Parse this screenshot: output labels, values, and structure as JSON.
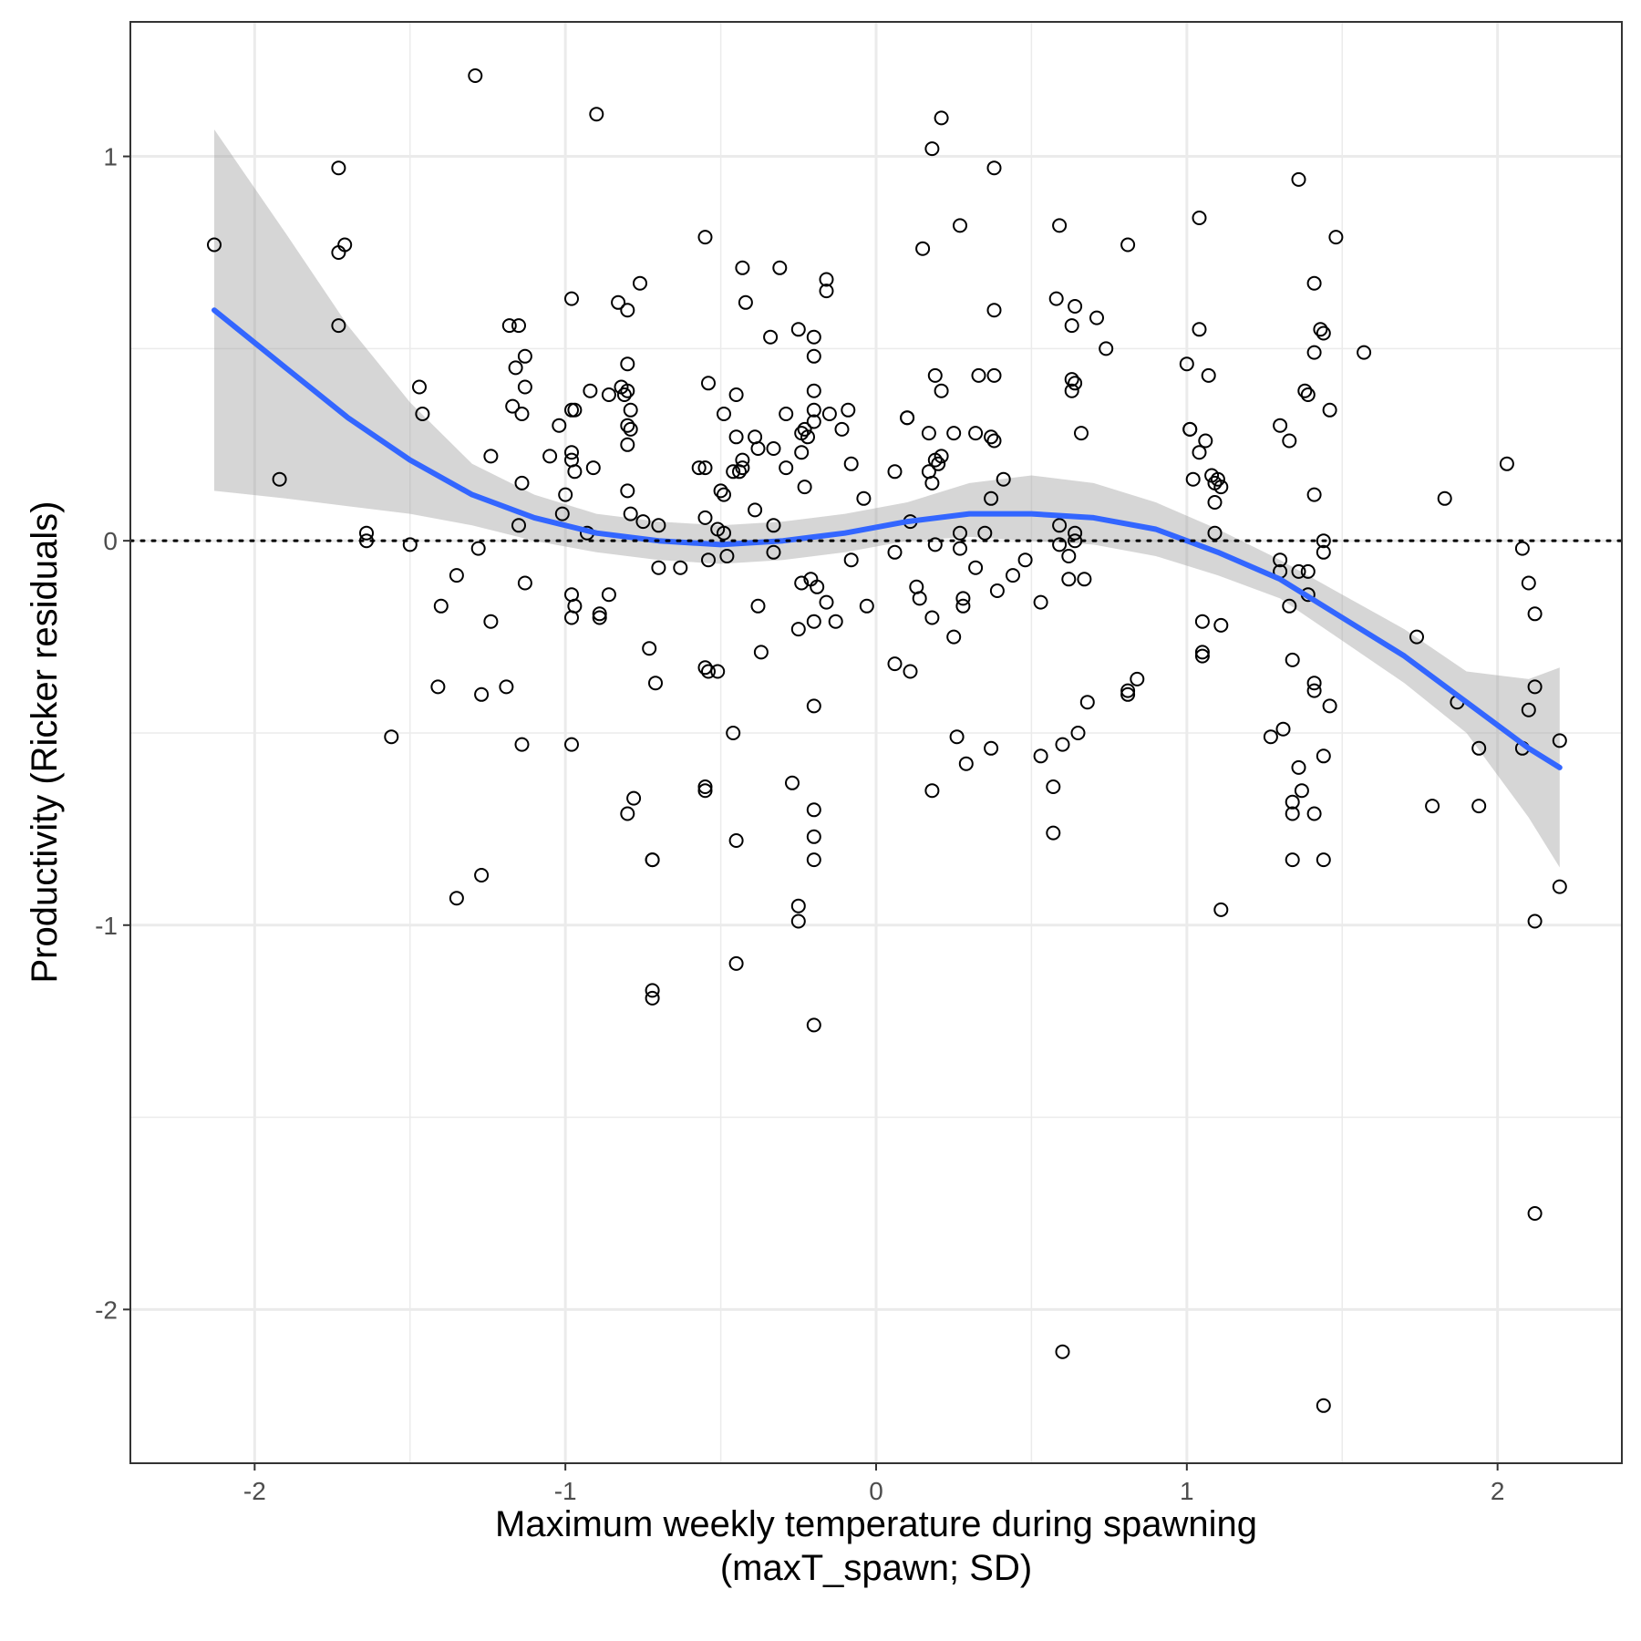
{
  "chart_data": {
    "type": "scatter",
    "title": "",
    "xlabel_lines": [
      "Maximum weekly temperature during spawning",
      "(maxT_spawn; SD)"
    ],
    "ylabel": "Productivity (Ricker residuals)",
    "xlim": [
      -2.4,
      2.4
    ],
    "ylim": [
      -2.4,
      1.35
    ],
    "x_ticks": [
      -2,
      -1,
      0,
      1,
      2
    ],
    "x_tick_labels": [
      "-2",
      "-1",
      "0",
      "1",
      "2"
    ],
    "y_ticks": [
      -2,
      -1,
      0,
      1
    ],
    "y_tick_labels": [
      "-2",
      "-1",
      "0",
      "1"
    ],
    "grid": true,
    "reference_line": {
      "y": 0,
      "style": "dotted"
    },
    "colors": {
      "points": "#000000",
      "smooth": "#3366FF",
      "ribbon": "#999999",
      "grid": "#ebebeb"
    },
    "smooth": {
      "method": "loess",
      "x": [
        -2.13,
        -1.9,
        -1.7,
        -1.5,
        -1.3,
        -1.1,
        -0.9,
        -0.7,
        -0.5,
        -0.3,
        -0.1,
        0.1,
        0.3,
        0.5,
        0.7,
        0.9,
        1.1,
        1.3,
        1.5,
        1.7,
        1.9,
        2.1,
        2.2
      ],
      "y": [
        0.6,
        0.45,
        0.32,
        0.21,
        0.12,
        0.06,
        0.02,
        0.0,
        -0.01,
        0.0,
        0.02,
        0.05,
        0.07,
        0.07,
        0.06,
        0.03,
        -0.03,
        -0.1,
        -0.2,
        -0.3,
        -0.42,
        -0.54,
        -0.59
      ],
      "lower": [
        0.13,
        0.11,
        0.09,
        0.07,
        0.04,
        0.0,
        -0.03,
        -0.05,
        -0.06,
        -0.05,
        -0.03,
        0.0,
        0.01,
        0.0,
        -0.01,
        -0.04,
        -0.09,
        -0.15,
        -0.26,
        -0.37,
        -0.5,
        -0.72,
        -0.85
      ],
      "upper": [
        1.07,
        0.8,
        0.56,
        0.36,
        0.2,
        0.12,
        0.07,
        0.05,
        0.04,
        0.05,
        0.07,
        0.1,
        0.15,
        0.17,
        0.15,
        0.1,
        0.03,
        -0.05,
        -0.14,
        -0.23,
        -0.34,
        -0.36,
        -0.33
      ]
    },
    "points": [
      [
        -2.13,
        0.77
      ],
      [
        -1.92,
        0.16
      ],
      [
        -1.73,
        0.97
      ],
      [
        -1.73,
        0.75
      ],
      [
        -1.71,
        0.77
      ],
      [
        -1.73,
        0.56
      ],
      [
        -1.64,
        0.02
      ],
      [
        -1.64,
        0.0
      ],
      [
        -1.56,
        -0.51
      ],
      [
        -1.5,
        -0.01
      ],
      [
        -1.47,
        0.4
      ],
      [
        -1.46,
        0.33
      ],
      [
        -1.41,
        -0.38
      ],
      [
        -1.4,
        -0.17
      ],
      [
        -1.35,
        -0.09
      ],
      [
        -1.35,
        -0.93
      ],
      [
        -1.29,
        1.21
      ],
      [
        -1.28,
        -0.02
      ],
      [
        -1.27,
        -0.4
      ],
      [
        -1.27,
        -0.87
      ],
      [
        -1.24,
        0.22
      ],
      [
        -1.24,
        -0.21
      ],
      [
        -1.19,
        -0.38
      ],
      [
        -1.18,
        0.56
      ],
      [
        -1.17,
        0.35
      ],
      [
        -1.16,
        0.45
      ],
      [
        -1.15,
        0.56
      ],
      [
        -1.14,
        0.33
      ],
      [
        -1.13,
        0.48
      ],
      [
        -1.13,
        0.4
      ],
      [
        -1.15,
        0.04
      ],
      [
        -1.14,
        0.15
      ],
      [
        -1.13,
        -0.11
      ],
      [
        -1.14,
        -0.53
      ],
      [
        -1.05,
        0.22
      ],
      [
        -1.02,
        0.3
      ],
      [
        -1.01,
        0.07
      ],
      [
        -1.0,
        0.12
      ],
      [
        -0.98,
        0.34
      ],
      [
        -0.97,
        0.34
      ],
      [
        -0.98,
        0.23
      ],
      [
        -0.98,
        0.21
      ],
      [
        -0.97,
        0.18
      ],
      [
        -0.98,
        0.63
      ],
      [
        -0.98,
        -0.14
      ],
      [
        -0.97,
        -0.17
      ],
      [
        -0.98,
        -0.2
      ],
      [
        -0.98,
        -0.53
      ],
      [
        -0.93,
        0.02
      ],
      [
        -0.92,
        0.39
      ],
      [
        -0.91,
        0.19
      ],
      [
        -0.9,
        1.11
      ],
      [
        -0.89,
        -0.19
      ],
      [
        -0.89,
        -0.2
      ],
      [
        -0.86,
        0.38
      ],
      [
        -0.86,
        -0.14
      ],
      [
        -0.83,
        0.62
      ],
      [
        -0.82,
        0.4
      ],
      [
        -0.81,
        0.38
      ],
      [
        -0.8,
        0.6
      ],
      [
        -0.8,
        0.46
      ],
      [
        -0.8,
        0.39
      ],
      [
        -0.8,
        0.3
      ],
      [
        -0.79,
        0.29
      ],
      [
        -0.79,
        0.34
      ],
      [
        -0.8,
        0.25
      ],
      [
        -0.8,
        0.13
      ],
      [
        -0.79,
        0.07
      ],
      [
        -0.78,
        -0.67
      ],
      [
        -0.8,
        -0.71
      ],
      [
        -0.76,
        0.67
      ],
      [
        -0.75,
        0.05
      ],
      [
        -0.73,
        -0.28
      ],
      [
        -0.72,
        -0.83
      ],
      [
        -0.72,
        -0.83
      ],
      [
        -0.72,
        -1.17
      ],
      [
        -0.72,
        -1.19
      ],
      [
        -0.71,
        -0.37
      ],
      [
        -0.7,
        0.04
      ],
      [
        -0.7,
        -0.07
      ],
      [
        -0.63,
        -0.07
      ],
      [
        -0.57,
        0.19
      ],
      [
        -0.55,
        0.19
      ],
      [
        -0.55,
        0.79
      ],
      [
        -0.55,
        0.06
      ],
      [
        -0.55,
        -0.33
      ],
      [
        -0.54,
        0.41
      ],
      [
        -0.54,
        -0.05
      ],
      [
        -0.54,
        -0.34
      ],
      [
        -0.55,
        -0.64
      ],
      [
        -0.55,
        -0.65
      ],
      [
        -0.51,
        0.03
      ],
      [
        -0.51,
        -0.34
      ],
      [
        -0.5,
        0.13
      ],
      [
        -0.49,
        0.33
      ],
      [
        -0.49,
        0.12
      ],
      [
        -0.49,
        0.02
      ],
      [
        -0.48,
        -0.04
      ],
      [
        -0.46,
        0.18
      ],
      [
        -0.45,
        0.38
      ],
      [
        -0.45,
        0.27
      ],
      [
        -0.44,
        0.18
      ],
      [
        -0.43,
        0.19
      ],
      [
        -0.43,
        0.21
      ],
      [
        -0.43,
        0.71
      ],
      [
        -0.42,
        0.62
      ],
      [
        -0.46,
        -0.5
      ],
      [
        -0.45,
        -0.78
      ],
      [
        -0.45,
        -1.1
      ],
      [
        -0.39,
        0.27
      ],
      [
        -0.39,
        0.08
      ],
      [
        -0.38,
        0.24
      ],
      [
        -0.37,
        -0.29
      ],
      [
        -0.38,
        -0.17
      ],
      [
        -0.34,
        0.53
      ],
      [
        -0.33,
        0.24
      ],
      [
        -0.33,
        0.04
      ],
      [
        -0.33,
        -0.03
      ],
      [
        -0.31,
        0.71
      ],
      [
        -0.29,
        0.33
      ],
      [
        -0.29,
        0.19
      ],
      [
        -0.27,
        -0.63
      ],
      [
        -0.25,
        0.55
      ],
      [
        -0.24,
        0.28
      ],
      [
        -0.23,
        0.29
      ],
      [
        -0.24,
        0.23
      ],
      [
        -0.24,
        -0.11
      ],
      [
        -0.25,
        -0.23
      ],
      [
        -0.25,
        -0.95
      ],
      [
        -0.25,
        -0.99
      ],
      [
        -0.23,
        0.14
      ],
      [
        -0.22,
        0.27
      ],
      [
        -0.21,
        -0.1
      ],
      [
        -0.2,
        0.53
      ],
      [
        -0.2,
        0.48
      ],
      [
        -0.2,
        0.39
      ],
      [
        -0.2,
        0.34
      ],
      [
        -0.2,
        0.31
      ],
      [
        -0.19,
        -0.12
      ],
      [
        -0.2,
        -0.21
      ],
      [
        -0.2,
        -0.43
      ],
      [
        -0.2,
        -0.7
      ],
      [
        -0.2,
        -0.77
      ],
      [
        -0.2,
        -0.83
      ],
      [
        -0.2,
        -1.26
      ],
      [
        -0.16,
        0.68
      ],
      [
        -0.16,
        0.65
      ],
      [
        -0.16,
        -0.16
      ],
      [
        -0.15,
        0.33
      ],
      [
        -0.13,
        -0.21
      ],
      [
        -0.11,
        0.29
      ],
      [
        -0.09,
        0.34
      ],
      [
        -0.08,
        0.2
      ],
      [
        -0.08,
        -0.05
      ],
      [
        -0.04,
        0.11
      ],
      [
        -0.03,
        -0.17
      ],
      [
        0.06,
        0.18
      ],
      [
        0.06,
        -0.03
      ],
      [
        0.06,
        -0.32
      ],
      [
        0.1,
        0.32
      ],
      [
        0.1,
        0.32
      ],
      [
        0.11,
        0.05
      ],
      [
        0.11,
        -0.34
      ],
      [
        0.13,
        -0.12
      ],
      [
        0.14,
        -0.15
      ],
      [
        0.15,
        0.76
      ],
      [
        0.17,
        0.28
      ],
      [
        0.17,
        0.18
      ],
      [
        0.18,
        1.02
      ],
      [
        0.18,
        0.15
      ],
      [
        0.18,
        -0.2
      ],
      [
        0.19,
        0.43
      ],
      [
        0.19,
        0.21
      ],
      [
        0.19,
        -0.01
      ],
      [
        0.2,
        0.2
      ],
      [
        0.21,
        0.22
      ],
      [
        0.21,
        0.39
      ],
      [
        0.21,
        1.1
      ],
      [
        0.18,
        -0.65
      ],
      [
        0.25,
        0.28
      ],
      [
        0.25,
        -0.25
      ],
      [
        0.26,
        -0.51
      ],
      [
        0.27,
        0.82
      ],
      [
        0.27,
        0.02
      ],
      [
        0.28,
        -0.15
      ],
      [
        0.28,
        -0.17
      ],
      [
        0.27,
        -0.02
      ],
      [
        0.29,
        -0.58
      ],
      [
        0.32,
        0.28
      ],
      [
        0.32,
        -0.07
      ],
      [
        0.33,
        0.43
      ],
      [
        0.35,
        0.02
      ],
      [
        0.37,
        0.27
      ],
      [
        0.37,
        0.11
      ],
      [
        0.37,
        -0.54
      ],
      [
        0.38,
        0.97
      ],
      [
        0.38,
        0.6
      ],
      [
        0.38,
        0.43
      ],
      [
        0.38,
        0.26
      ],
      [
        0.39,
        -0.13
      ],
      [
        0.41,
        0.16
      ],
      [
        0.44,
        -0.09
      ],
      [
        0.48,
        -0.05
      ],
      [
        0.53,
        -0.56
      ],
      [
        0.53,
        -0.16
      ],
      [
        0.57,
        -0.64
      ],
      [
        0.57,
        -0.76
      ],
      [
        0.58,
        0.63
      ],
      [
        0.59,
        0.82
      ],
      [
        0.59,
        0.04
      ],
      [
        0.59,
        -0.01
      ],
      [
        0.6,
        -0.53
      ],
      [
        0.6,
        -2.11
      ],
      [
        0.62,
        -0.1
      ],
      [
        0.62,
        -0.04
      ],
      [
        0.63,
        0.56
      ],
      [
        0.63,
        0.39
      ],
      [
        0.63,
        0.42
      ],
      [
        0.64,
        0.41
      ],
      [
        0.64,
        0.61
      ],
      [
        0.64,
        0.0
      ],
      [
        0.64,
        0.02
      ],
      [
        0.65,
        -0.5
      ],
      [
        0.66,
        0.28
      ],
      [
        0.67,
        -0.1
      ],
      [
        0.68,
        -0.42
      ],
      [
        0.71,
        0.58
      ],
      [
        0.74,
        0.5
      ],
      [
        0.81,
        0.77
      ],
      [
        0.81,
        -0.39
      ],
      [
        0.81,
        -0.4
      ],
      [
        0.84,
        -0.36
      ],
      [
        1.0,
        0.46
      ],
      [
        1.01,
        0.29
      ],
      [
        1.01,
        0.29
      ],
      [
        1.02,
        0.16
      ],
      [
        1.04,
        0.23
      ],
      [
        1.04,
        0.84
      ],
      [
        1.04,
        0.55
      ],
      [
        1.05,
        -0.21
      ],
      [
        1.05,
        -0.29
      ],
      [
        1.05,
        -0.3
      ],
      [
        1.06,
        0.26
      ],
      [
        1.07,
        0.43
      ],
      [
        1.08,
        0.17
      ],
      [
        1.09,
        0.15
      ],
      [
        1.09,
        0.1
      ],
      [
        1.09,
        0.02
      ],
      [
        1.1,
        0.16
      ],
      [
        1.11,
        0.14
      ],
      [
        1.11,
        -0.22
      ],
      [
        1.11,
        -0.96
      ],
      [
        1.27,
        -0.51
      ],
      [
        1.3,
        0.3
      ],
      [
        1.3,
        -0.08
      ],
      [
        1.3,
        -0.05
      ],
      [
        1.31,
        -0.49
      ],
      [
        1.33,
        0.26
      ],
      [
        1.33,
        -0.17
      ],
      [
        1.34,
        -0.31
      ],
      [
        1.34,
        -0.68
      ],
      [
        1.34,
        -0.71
      ],
      [
        1.34,
        -0.83
      ],
      [
        1.36,
        0.94
      ],
      [
        1.36,
        -0.08
      ],
      [
        1.36,
        -0.59
      ],
      [
        1.37,
        -0.65
      ],
      [
        1.38,
        0.39
      ],
      [
        1.39,
        0.38
      ],
      [
        1.39,
        -0.08
      ],
      [
        1.39,
        -0.14
      ],
      [
        1.41,
        0.67
      ],
      [
        1.41,
        0.49
      ],
      [
        1.41,
        0.12
      ],
      [
        1.41,
        -0.37
      ],
      [
        1.41,
        -0.39
      ],
      [
        1.41,
        -0.71
      ],
      [
        1.43,
        0.55
      ],
      [
        1.44,
        0.54
      ],
      [
        1.44,
        -0.03
      ],
      [
        1.44,
        0.0
      ],
      [
        1.44,
        -0.56
      ],
      [
        1.44,
        -0.83
      ],
      [
        1.44,
        -2.25
      ],
      [
        1.46,
        0.34
      ],
      [
        1.46,
        -0.43
      ],
      [
        1.48,
        0.79
      ],
      [
        1.57,
        0.49
      ],
      [
        1.74,
        -0.25
      ],
      [
        1.79,
        -0.69
      ],
      [
        1.83,
        0.11
      ],
      [
        1.87,
        -0.42
      ],
      [
        1.94,
        -0.54
      ],
      [
        1.94,
        -0.69
      ],
      [
        2.03,
        0.2
      ],
      [
        2.08,
        -0.02
      ],
      [
        2.08,
        -0.54
      ],
      [
        2.1,
        -0.11
      ],
      [
        2.1,
        -0.44
      ],
      [
        2.12,
        -0.38
      ],
      [
        2.12,
        -0.19
      ],
      [
        2.12,
        -0.99
      ],
      [
        2.12,
        -1.75
      ],
      [
        2.2,
        -0.52
      ],
      [
        2.2,
        -0.9
      ]
    ]
  }
}
